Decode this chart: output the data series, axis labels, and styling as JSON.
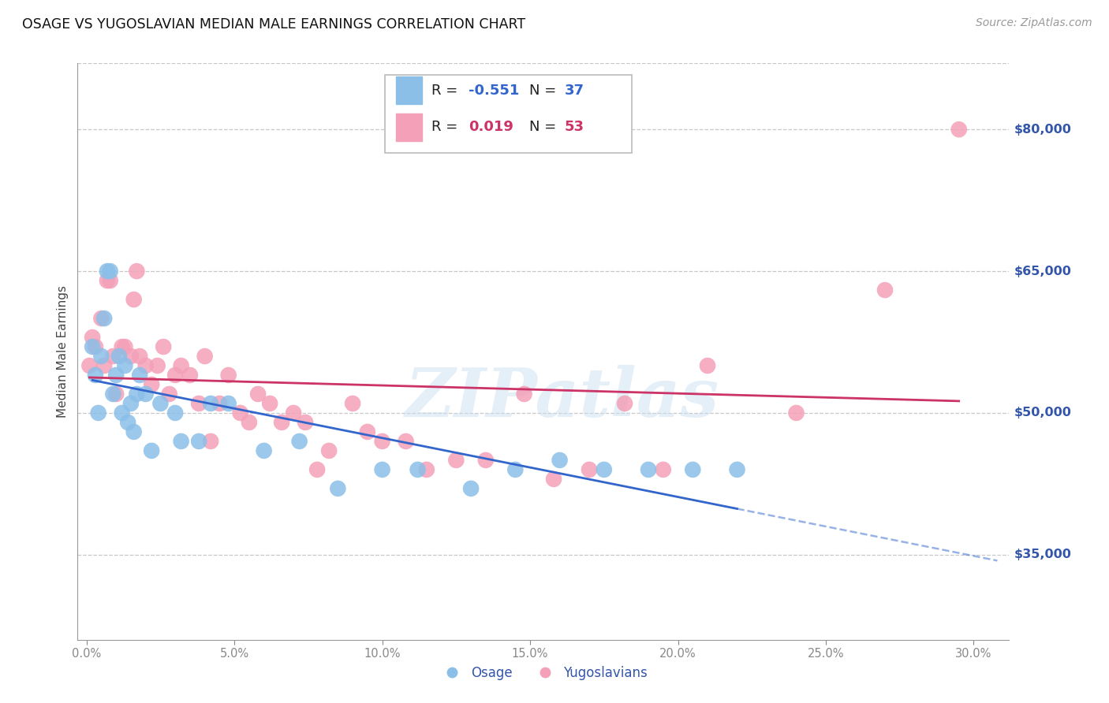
{
  "title": "OSAGE VS YUGOSLAVIAN MEDIAN MALE EARNINGS CORRELATION CHART",
  "source": "Source: ZipAtlas.com",
  "xlabel_ticks": [
    0.0,
    0.05,
    0.1,
    0.15,
    0.2,
    0.25,
    0.3
  ],
  "xlabel_labels": [
    "0.0%",
    "5.0%",
    "10.0%",
    "15.0%",
    "20.0%",
    "25.0%",
    "30.0%"
  ],
  "ylabel": "Median Male Earnings",
  "ylabel_ticks": [
    35000,
    50000,
    65000,
    80000
  ],
  "ylabel_labels": [
    "$35,000",
    "$50,000",
    "$65,000",
    "$80,000"
  ],
  "xlim": [
    -0.003,
    0.312
  ],
  "ylim": [
    26000,
    87000
  ],
  "osage_R": -0.551,
  "osage_N": 37,
  "yugoslav_R": 0.019,
  "yugoslav_N": 53,
  "osage_color": "#8bbfe8",
  "yugoslav_color": "#f4a0b8",
  "osage_line_color": "#3366cc",
  "yugoslav_line_color": "#cc3366",
  "watermark_text": "ZIPatlas",
  "background_color": "#ffffff",
  "grid_color": "#c8c8c8",
  "title_color": "#111111",
  "right_label_color": "#3355aa",
  "osage_x": [
    0.002,
    0.003,
    0.004,
    0.005,
    0.006,
    0.007,
    0.008,
    0.009,
    0.01,
    0.011,
    0.012,
    0.013,
    0.014,
    0.015,
    0.016,
    0.017,
    0.018,
    0.02,
    0.022,
    0.025,
    0.03,
    0.032,
    0.038,
    0.042,
    0.048,
    0.06,
    0.072,
    0.085,
    0.1,
    0.112,
    0.13,
    0.145,
    0.16,
    0.175,
    0.19,
    0.205,
    0.22
  ],
  "osage_y": [
    57000,
    54000,
    50000,
    56000,
    60000,
    65000,
    65000,
    52000,
    54000,
    56000,
    50000,
    55000,
    49000,
    51000,
    48000,
    52000,
    54000,
    52000,
    46000,
    51000,
    50000,
    47000,
    47000,
    51000,
    51000,
    46000,
    47000,
    42000,
    44000,
    44000,
    42000,
    44000,
    45000,
    44000,
    44000,
    44000,
    44000
  ],
  "yugoslav_x": [
    0.001,
    0.002,
    0.003,
    0.005,
    0.006,
    0.007,
    0.008,
    0.009,
    0.01,
    0.012,
    0.013,
    0.015,
    0.016,
    0.017,
    0.018,
    0.02,
    0.022,
    0.024,
    0.026,
    0.028,
    0.03,
    0.032,
    0.035,
    0.038,
    0.04,
    0.042,
    0.045,
    0.048,
    0.052,
    0.055,
    0.058,
    0.062,
    0.066,
    0.07,
    0.074,
    0.078,
    0.082,
    0.09,
    0.095,
    0.1,
    0.108,
    0.115,
    0.125,
    0.135,
    0.148,
    0.158,
    0.17,
    0.182,
    0.195,
    0.21,
    0.24,
    0.27,
    0.295
  ],
  "yugoslav_y": [
    55000,
    58000,
    57000,
    60000,
    55000,
    64000,
    64000,
    56000,
    52000,
    57000,
    57000,
    56000,
    62000,
    65000,
    56000,
    55000,
    53000,
    55000,
    57000,
    52000,
    54000,
    55000,
    54000,
    51000,
    56000,
    47000,
    51000,
    54000,
    50000,
    49000,
    52000,
    51000,
    49000,
    50000,
    49000,
    44000,
    46000,
    51000,
    48000,
    47000,
    47000,
    44000,
    45000,
    45000,
    52000,
    43000,
    44000,
    51000,
    44000,
    55000,
    50000,
    63000,
    80000
  ],
  "legend_R1": "-0.551",
  "legend_N1": "37",
  "legend_R2": "0.019",
  "legend_N2": "53"
}
